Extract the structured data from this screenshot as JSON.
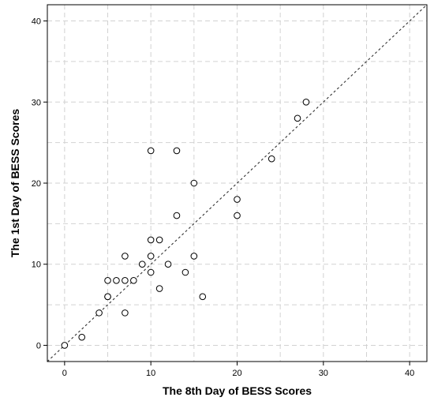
{
  "chart_data": {
    "type": "scatter",
    "xlabel": "The 8th Day of BESS Scores",
    "ylabel": "The 1st Day of BESS Scores",
    "xlim": [
      -2,
      42
    ],
    "ylim": [
      -2,
      42
    ],
    "x_ticks": [
      0,
      10,
      20,
      30,
      40
    ],
    "y_ticks": [
      0,
      10,
      20,
      30,
      40
    ],
    "grid": true,
    "points": [
      {
        "x": 0,
        "y": 0
      },
      {
        "x": 2,
        "y": 1
      },
      {
        "x": 4,
        "y": 4
      },
      {
        "x": 5,
        "y": 6
      },
      {
        "x": 5,
        "y": 6
      },
      {
        "x": 5,
        "y": 8
      },
      {
        "x": 6,
        "y": 8
      },
      {
        "x": 7,
        "y": 4
      },
      {
        "x": 7,
        "y": 8
      },
      {
        "x": 7,
        "y": 11
      },
      {
        "x": 8,
        "y": 8
      },
      {
        "x": 9,
        "y": 10
      },
      {
        "x": 10,
        "y": 9
      },
      {
        "x": 10,
        "y": 11
      },
      {
        "x": 10,
        "y": 13
      },
      {
        "x": 10,
        "y": 24
      },
      {
        "x": 11,
        "y": 7
      },
      {
        "x": 11,
        "y": 13
      },
      {
        "x": 12,
        "y": 10
      },
      {
        "x": 13,
        "y": 16
      },
      {
        "x": 13,
        "y": 24
      },
      {
        "x": 14,
        "y": 9
      },
      {
        "x": 15,
        "y": 11
      },
      {
        "x": 15,
        "y": 20
      },
      {
        "x": 16,
        "y": 6
      },
      {
        "x": 20,
        "y": 16
      },
      {
        "x": 20,
        "y": 18
      },
      {
        "x": 24,
        "y": 23
      },
      {
        "x": 27,
        "y": 28
      },
      {
        "x": 28,
        "y": 30
      }
    ],
    "reference_line": {
      "style": "dashed",
      "from": [
        -2,
        -2
      ],
      "to": [
        42,
        42
      ]
    }
  }
}
